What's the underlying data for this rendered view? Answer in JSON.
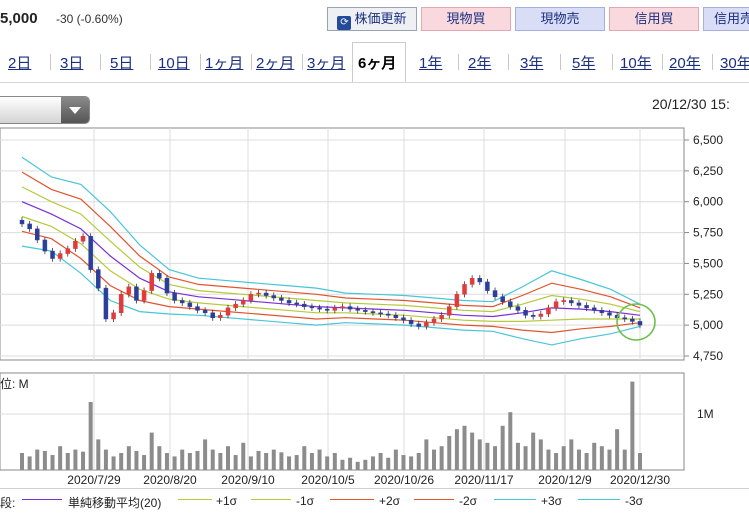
{
  "header": {
    "price": "5,000",
    "change": "-30 (-0.60%)",
    "update_button": "株価更新",
    "buy_button": "現物買",
    "sell_button": "現物売",
    "margin_buy_button": "信用買",
    "margin_sell_button": "信用売"
  },
  "ranges": [
    "2日",
    "3日",
    "5日",
    "10日",
    "1ヶ月",
    "2ヶ月",
    "3ヶ月",
    "6ヶ月",
    "1年",
    "2年",
    "3年",
    "5年",
    "10年",
    "20年",
    "30年"
  ],
  "active_range": "6ヶ月",
  "datetime": "20/12/30 15:",
  "volume_unit": "位: M",
  "legend": {
    "label": "段:",
    "items": [
      "単純移動平均(20)",
      "+1σ",
      "-1σ",
      "+2σ",
      "-2σ",
      "+3σ",
      "-3σ"
    ]
  },
  "colors": {
    "ma": "#7b2fd6",
    "sigma1": "#b6c93c",
    "sigma2": "#e0552e",
    "sigma3": "#47c6d9",
    "up": "#e23b3b",
    "down": "#2a3f9a",
    "volume": "#8c8c8c",
    "highlight": "#6cc04a"
  },
  "chart_data": {
    "type": "line",
    "price_axis_ticks": [
      "6,500",
      "6,250",
      "6,000",
      "5,750",
      "5,500",
      "5,250",
      "5,000",
      "4,750"
    ],
    "ylim": [
      4750,
      6500
    ],
    "x_tick_labels": [
      "2020/7/29",
      "2020/8/20",
      "2020/9/10",
      "2020/10/5",
      "2020/10/26",
      "2020/11/17",
      "2020/12/9",
      "2020/12/30"
    ],
    "volume_axis_ticks": [
      "1M"
    ],
    "series": [
      {
        "name": "単純移動平均(20)",
        "values": [
          6000,
          5900,
          5780,
          5560,
          5380,
          5270,
          5230,
          5210,
          5190,
          5170,
          5150,
          5140,
          5130,
          5120,
          5100,
          5080,
          5070,
          5100,
          5140,
          5130,
          5110,
          5080
        ]
      },
      {
        "name": "+1σ",
        "values": [
          6120,
          6000,
          5900,
          5680,
          5470,
          5330,
          5280,
          5260,
          5240,
          5220,
          5200,
          5180,
          5170,
          5160,
          5140,
          5120,
          5110,
          5170,
          5240,
          5210,
          5170,
          5110
        ]
      },
      {
        "name": "-1σ",
        "values": [
          5880,
          5800,
          5660,
          5440,
          5290,
          5210,
          5180,
          5160,
          5140,
          5120,
          5100,
          5100,
          5090,
          5080,
          5060,
          5040,
          5030,
          5030,
          5040,
          5050,
          5050,
          5050
        ]
      },
      {
        "name": "+2σ",
        "values": [
          6240,
          6100,
          6020,
          5800,
          5560,
          5390,
          5330,
          5310,
          5290,
          5270,
          5250,
          5220,
          5210,
          5200,
          5180,
          5160,
          5150,
          5240,
          5340,
          5290,
          5230,
          5140
        ]
      },
      {
        "name": "-2σ",
        "values": [
          5760,
          5700,
          5540,
          5320,
          5200,
          5150,
          5130,
          5110,
          5090,
          5070,
          5050,
          5060,
          5050,
          5040,
          5020,
          5000,
          4990,
          4960,
          4940,
          4970,
          4990,
          5020
        ]
      },
      {
        "name": "+3σ",
        "values": [
          6360,
          6200,
          6140,
          5920,
          5650,
          5450,
          5380,
          5360,
          5340,
          5320,
          5300,
          5260,
          5250,
          5240,
          5220,
          5200,
          5190,
          5310,
          5440,
          5370,
          5290,
          5170
        ]
      },
      {
        "name": "-3σ",
        "values": [
          5640,
          5600,
          5420,
          5200,
          5110,
          5090,
          5080,
          5060,
          5040,
          5020,
          5000,
          5020,
          5010,
          5000,
          4980,
          4960,
          4950,
          4890,
          4840,
          4890,
          4930,
          4990
        ]
      }
    ],
    "close_prices": [
      5820,
      5780,
      5690,
      5600,
      5540,
      5580,
      5620,
      5680,
      5720,
      5450,
      5300,
      5050,
      5100,
      5250,
      5310,
      5200,
      5280,
      5420,
      5380,
      5260,
      5200,
      5180,
      5150,
      5120,
      5100,
      5060,
      5080,
      5140,
      5170,
      5200,
      5250,
      5260,
      5240,
      5220,
      5200,
      5180,
      5170,
      5150,
      5140,
      5130,
      5120,
      5140,
      5150,
      5130,
      5120,
      5110,
      5100,
      5090,
      5080,
      5060,
      5040,
      5010,
      4990,
      5020,
      5050,
      5080,
      5150,
      5250,
      5330,
      5380,
      5350,
      5280,
      5230,
      5190,
      5150,
      5120,
      5080,
      5070,
      5090,
      5140,
      5190,
      5200,
      5180,
      5160,
      5140,
      5120,
      5100,
      5080,
      5060,
      5050,
      5030,
      5000
    ],
    "volumes": [
      0.25,
      0.2,
      0.3,
      0.28,
      0.22,
      0.35,
      0.25,
      0.3,
      0.27,
      1.0,
      0.45,
      0.3,
      0.2,
      0.25,
      0.35,
      0.28,
      0.22,
      0.55,
      0.35,
      0.25,
      0.2,
      0.3,
      0.25,
      0.28,
      0.45,
      0.3,
      0.25,
      0.35,
      0.22,
      0.4,
      0.2,
      0.28,
      0.25,
      0.3,
      0.26,
      0.2,
      0.22,
      0.35,
      0.25,
      0.3,
      0.2,
      0.25,
      0.15,
      0.18,
      0.12,
      0.15,
      0.2,
      0.25,
      0.18,
      0.3,
      0.22,
      0.2,
      0.25,
      0.45,
      0.3,
      0.35,
      0.5,
      0.6,
      0.65,
      0.55,
      0.45,
      0.4,
      0.35,
      0.65,
      0.85,
      0.4,
      0.35,
      0.55,
      0.45,
      0.3,
      0.25,
      0.35,
      0.45,
      0.3,
      0.25,
      0.4,
      0.35,
      0.3,
      0.6,
      0.3,
      1.3,
      0.25
    ]
  }
}
